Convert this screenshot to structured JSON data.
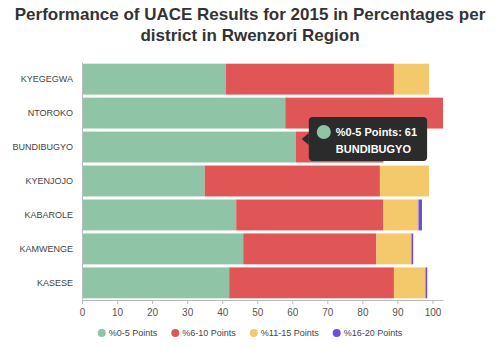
{
  "chart_data": {
    "type": "bar",
    "title": "Performance of UACE Results for 2015 in Percentages per district in Rwenzori Region",
    "orientation": "horizontal",
    "stacked": true,
    "grid": false,
    "legend": "bottom",
    "data_labels": false,
    "categories": [
      "KYEGEGWA",
      "NTOROKO",
      "BUNDIBUGYO",
      "KYENJOJO",
      "KABAROLE",
      "KAMWENGE",
      "KASESE"
    ],
    "series": [
      {
        "name": "%0-5 Points",
        "color": "#8fc4a6",
        "values": [
          41,
          58,
          61,
          35,
          44,
          46,
          42
        ]
      },
      {
        "name": "%6-10 Points",
        "color": "#e05555",
        "values": [
          48,
          45,
          25,
          50,
          42,
          38,
          47
        ]
      },
      {
        "name": "%11-15 Points",
        "color": "#f4c96c",
        "values": [
          10,
          0,
          0,
          14,
          10,
          10,
          9
        ]
      },
      {
        "name": "%16-20 Points",
        "color": "#6b4fd8",
        "values": [
          0,
          0,
          0,
          0,
          1,
          0.5,
          0.5
        ]
      }
    ],
    "xlim": [
      0,
      103
    ],
    "xticks": [
      0,
      10,
      20,
      30,
      40,
      50,
      60,
      70,
      80,
      90,
      100
    ],
    "annotations": [
      {
        "text": "%0-5 Points: 61",
        "label": "BUNDIBUGYO",
        "series": 0,
        "category": 2
      }
    ]
  }
}
